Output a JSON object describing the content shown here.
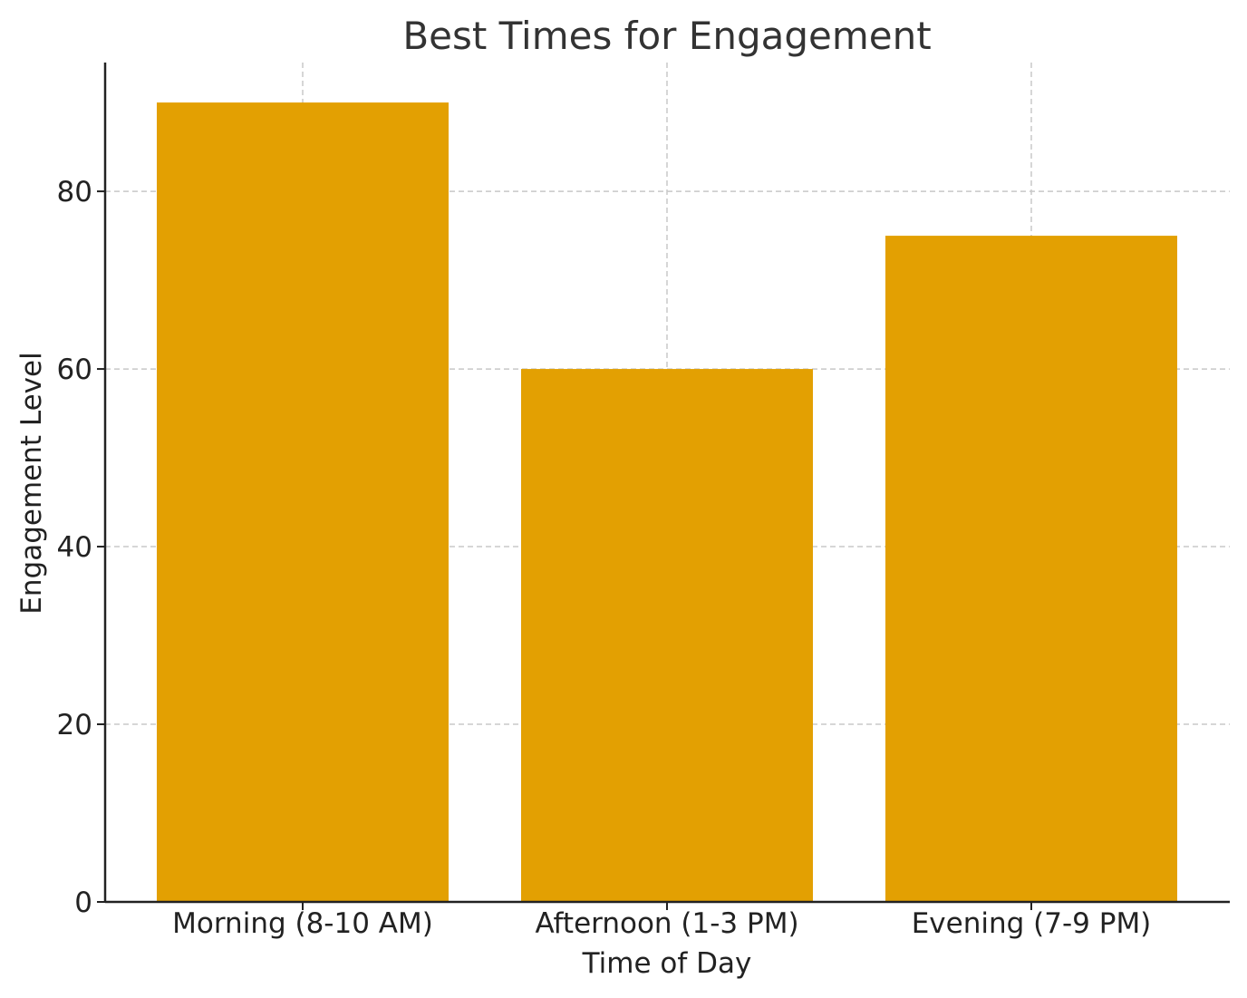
{
  "chart_data": {
    "type": "bar",
    "title": "Best Times for Engagement",
    "xlabel": "Time of Day",
    "ylabel": "Engagement Level",
    "categories": [
      "Morning (8-10 AM)",
      "Afternoon (1-3 PM)",
      "Evening (7-9 PM)"
    ],
    "values": [
      90,
      60,
      75
    ],
    "ylim": [
      0,
      94.5
    ],
    "yticks": [
      0,
      20,
      40,
      60,
      80
    ],
    "grid": true,
    "bar_color": "#E3A002"
  }
}
